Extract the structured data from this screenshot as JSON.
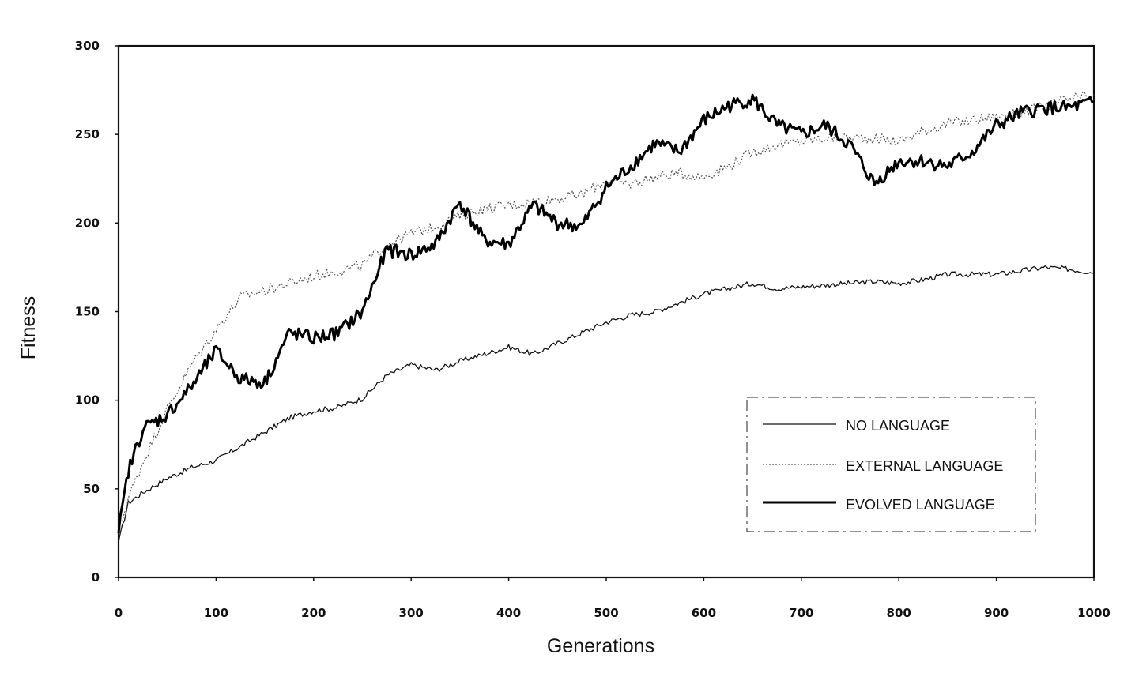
{
  "chart_data": {
    "type": "line",
    "title": "",
    "xlabel": "Generations",
    "ylabel": "Fitness",
    "xlim": [
      0,
      1000
    ],
    "ylim": [
      0,
      300
    ],
    "x_ticks": [
      "0",
      "100",
      "200",
      "300",
      "400",
      "500",
      "600",
      "700",
      "800",
      "900",
      "1000"
    ],
    "y_ticks": [
      "0",
      "50",
      "100",
      "150",
      "200",
      "250",
      "300"
    ],
    "grid": false,
    "legend_position": "lower-right",
    "x": [
      0,
      10,
      25,
      50,
      75,
      100,
      125,
      150,
      175,
      200,
      225,
      250,
      275,
      300,
      325,
      350,
      375,
      400,
      425,
      450,
      475,
      500,
      525,
      550,
      575,
      600,
      625,
      650,
      675,
      700,
      725,
      750,
      775,
      800,
      825,
      850,
      875,
      900,
      925,
      950,
      975,
      1000
    ],
    "series": [
      {
        "name": "NO LANGUAGE",
        "style": "thin-solid",
        "color": "#111111",
        "values": [
          20,
          42,
          48,
          56,
          62,
          66,
          74,
          82,
          90,
          94,
          96,
          101,
          114,
          120,
          117,
          122,
          126,
          130,
          126,
          132,
          138,
          144,
          148,
          150,
          155,
          160,
          163,
          166,
          163,
          164,
          165,
          166,
          167,
          166,
          168,
          171,
          171,
          171,
          173,
          175,
          174,
          172
        ]
      },
      {
        "name": "EXTERNAL LANGUAGE",
        "style": "dotted",
        "color": "#555555",
        "values": [
          25,
          45,
          65,
          95,
          120,
          140,
          158,
          162,
          166,
          170,
          173,
          176,
          188,
          194,
          198,
          204,
          208,
          210,
          212,
          214,
          216,
          224,
          222,
          226,
          228,
          226,
          232,
          240,
          244,
          246,
          248,
          248,
          248,
          246,
          252,
          256,
          258,
          260,
          262,
          266,
          270,
          272
        ]
      },
      {
        "name": "EVOLVED LANGUAGE",
        "style": "thick-solid",
        "color": "#000000",
        "values": [
          25,
          60,
          84,
          92,
          108,
          128,
          112,
          110,
          138,
          135,
          138,
          150,
          185,
          182,
          188,
          212,
          190,
          188,
          210,
          200,
          198,
          220,
          232,
          245,
          240,
          258,
          266,
          270,
          255,
          250,
          255,
          244,
          222,
          235,
          235,
          232,
          240,
          255,
          262,
          265,
          265,
          268
        ]
      }
    ]
  }
}
